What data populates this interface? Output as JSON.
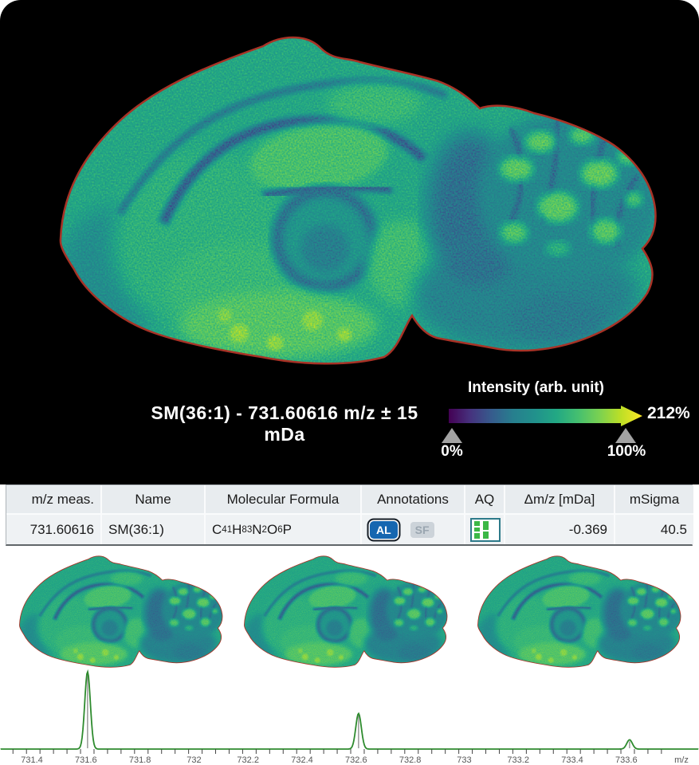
{
  "panel": {
    "overlay_label": "SM(36:1) - 731.60616 m/z ± 15 mDa",
    "colorbar": {
      "title": "Intensity (arb. unit)",
      "max_scale_label": "212%",
      "min_marker_label": "0%",
      "ref_marker_label": "100%",
      "gradient": [
        "#440154",
        "#46327e",
        "#365c8d",
        "#277f8e",
        "#21918c",
        "#22a884",
        "#44bf70",
        "#7ad151",
        "#bddf26",
        "#fde725"
      ],
      "outline_color": "#a83226"
    },
    "image_description": "mouse-brain-sagittal-ion-image"
  },
  "table": {
    "columns": [
      "m/z meas.",
      "Name",
      "Molecular Formula",
      "Annotations",
      "AQ",
      "Δm/z [mDa]",
      "mSigma"
    ],
    "row": {
      "mz_meas": "731.60616",
      "name": "SM(36:1)",
      "formula_parts": [
        [
          "C",
          "41"
        ],
        [
          "H",
          "83"
        ],
        [
          "N",
          "2"
        ],
        [
          "O",
          "6"
        ],
        [
          "P",
          ""
        ]
      ],
      "annotations": [
        "AL",
        "SF"
      ],
      "delta_mz": "-0.369",
      "msigma": "40.5"
    }
  },
  "thumbnails": {
    "count": 3,
    "description": "ion-image-thumbnails"
  },
  "chart_data": {
    "type": "line",
    "title": "",
    "xlabel": "m/z",
    "ylabel": "",
    "x_tick_labels": [
      "731.4",
      "731.6",
      "731.8",
      "732",
      "732.2",
      "732.4",
      "732.6",
      "732.8",
      "733",
      "733.2",
      "733.4",
      "733.6"
    ],
    "x_tick_values": [
      731.4,
      731.6,
      731.8,
      732.0,
      732.2,
      732.4,
      732.6,
      732.8,
      733.0,
      733.2,
      733.4,
      733.6
    ],
    "x_range": [
      731.28,
      733.75
    ],
    "minor_tick_step": 0.05,
    "peaks": [
      {
        "mz": 731.606,
        "rel_intensity": 1.0
      },
      {
        "mz": 732.609,
        "rel_intensity": 0.46
      },
      {
        "mz": 733.612,
        "rel_intensity": 0.12
      }
    ],
    "line_color": "#2e8b2e",
    "peak_marker_color": "#999999",
    "tick_color": "#444444",
    "label_color": "#555555",
    "grid": false,
    "legend": false
  }
}
